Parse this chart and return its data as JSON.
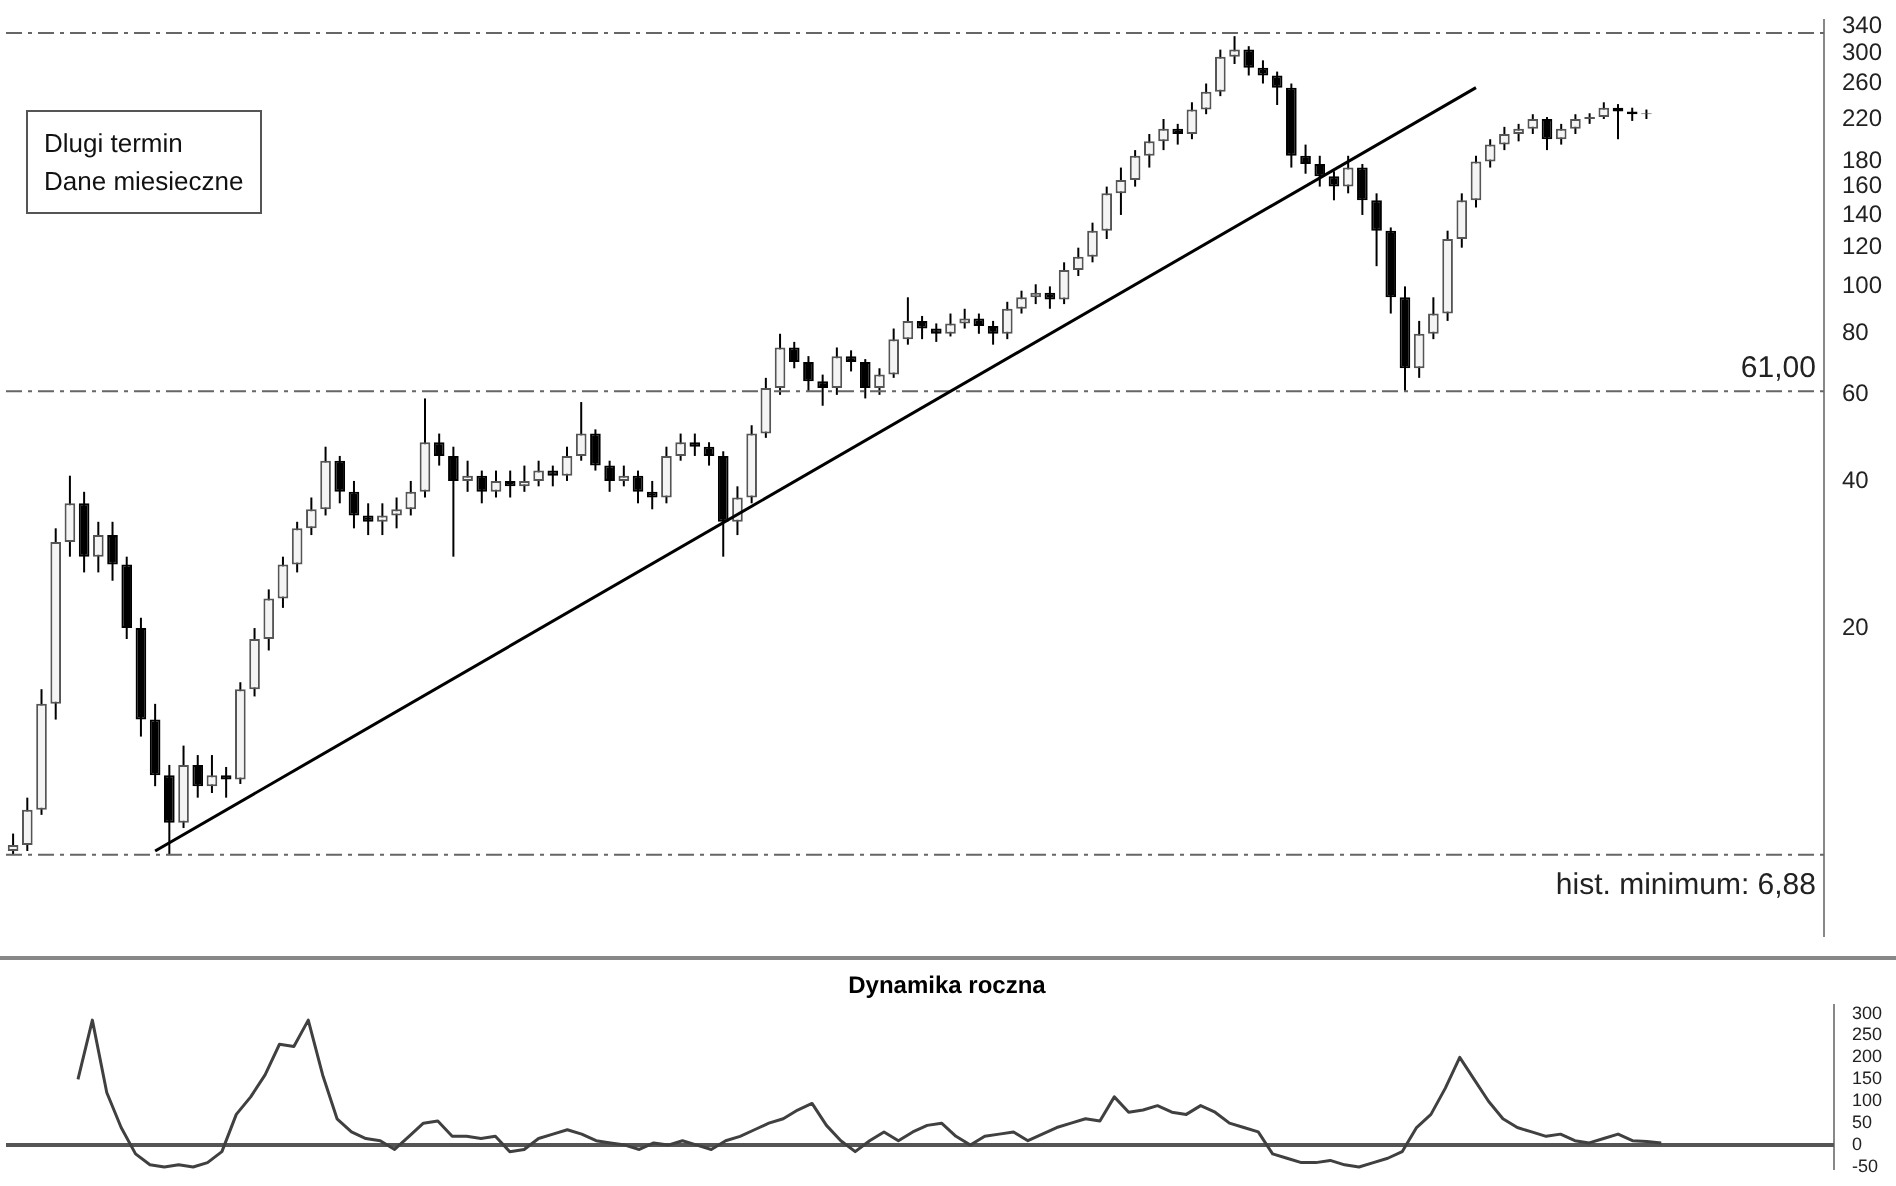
{
  "chart_data": [
    {
      "type": "candlestick",
      "categories": [
        null,
        null,
        null,
        null,
        null,
        null,
        null,
        null,
        null,
        null,
        null,
        null,
        null,
        null,
        null,
        null,
        null,
        null,
        null,
        null,
        null,
        null,
        null,
        null,
        null,
        null,
        null,
        null,
        null,
        null,
        null,
        null,
        null,
        null,
        null,
        null,
        null,
        null,
        null,
        null,
        null,
        null,
        null,
        null,
        null,
        null,
        null,
        null,
        null,
        null,
        null,
        null,
        null,
        null,
        null,
        null,
        null,
        null,
        null,
        null,
        null,
        null,
        null,
        null,
        null,
        null,
        null,
        null,
        null,
        null,
        null,
        null,
        null,
        null,
        null,
        null,
        null,
        null,
        null,
        null,
        null,
        null,
        null,
        null,
        null,
        null,
        null,
        null,
        null,
        null,
        null,
        null,
        null,
        null,
        null,
        null,
        null,
        null,
        null,
        null,
        null,
        null,
        null,
        null,
        null,
        null,
        null,
        null,
        null,
        null,
        null,
        null,
        null,
        null,
        null,
        null,
        null,
        null,
        null,
        null,
        null,
        null,
        null,
        null,
        null,
        null,
        null,
        null
      ],
      "ohlc": [
        [
          7.0,
          7.6,
          6.9,
          7.2
        ],
        [
          7.2,
          9.0,
          7.0,
          8.5
        ],
        [
          8.5,
          15,
          8.3,
          14
        ],
        [
          14,
          32,
          13,
          30
        ],
        [
          30,
          41,
          28,
          36
        ],
        [
          36,
          38,
          26,
          28
        ],
        [
          28,
          33,
          26,
          31
        ],
        [
          31,
          33,
          25,
          27
        ],
        [
          27,
          28,
          19,
          20
        ],
        [
          20,
          21,
          12,
          13
        ],
        [
          13,
          14,
          9.5,
          10
        ],
        [
          10,
          10.5,
          6.9,
          8
        ],
        [
          8,
          11.5,
          7.8,
          10.5
        ],
        [
          10.5,
          11,
          9,
          9.5
        ],
        [
          9.5,
          11,
          9.2,
          10
        ],
        [
          10,
          10.4,
          9,
          9.8
        ],
        [
          9.8,
          15.5,
          9.6,
          15
        ],
        [
          15,
          20,
          14.5,
          19
        ],
        [
          19,
          24,
          18,
          23
        ],
        [
          23,
          28,
          22,
          27
        ],
        [
          27,
          33,
          26,
          32
        ],
        [
          32,
          37,
          31,
          35
        ],
        [
          35,
          47,
          34,
          44
        ],
        [
          44,
          45,
          36,
          38
        ],
        [
          38,
          40,
          32,
          34
        ],
        [
          34,
          36,
          31,
          33
        ],
        [
          33,
          36,
          31,
          34
        ],
        [
          34,
          37,
          32,
          35
        ],
        [
          35,
          40,
          34,
          38
        ],
        [
          38,
          59,
          37,
          48
        ],
        [
          48,
          50,
          43,
          45
        ],
        [
          45,
          47,
          28,
          40
        ],
        [
          40,
          44,
          38,
          41
        ],
        [
          41,
          42,
          36,
          38
        ],
        [
          38,
          42,
          37,
          40
        ],
        [
          40,
          42,
          37,
          39
        ],
        [
          39,
          43,
          38,
          40
        ],
        [
          40,
          44,
          39,
          42
        ],
        [
          42,
          43,
          39,
          41
        ],
        [
          41,
          47,
          40,
          45
        ],
        [
          45,
          58,
          44,
          50
        ],
        [
          50,
          51,
          42,
          43
        ],
        [
          43,
          44,
          38,
          40
        ],
        [
          40,
          43,
          39,
          41
        ],
        [
          41,
          42,
          36,
          38
        ],
        [
          38,
          40,
          35,
          37
        ],
        [
          37,
          47,
          36,
          45
        ],
        [
          45,
          50,
          44,
          48
        ],
        [
          48,
          50,
          45,
          47
        ],
        [
          47,
          48,
          43,
          45
        ],
        [
          45,
          46,
          28,
          33
        ],
        [
          33,
          39,
          31,
          37
        ],
        [
          37,
          52,
          36,
          50
        ],
        [
          50,
          65,
          49,
          62
        ],
        [
          62,
          80,
          60,
          75
        ],
        [
          75,
          77,
          68,
          70
        ],
        [
          70,
          72,
          61,
          64
        ],
        [
          64,
          66,
          57,
          62
        ],
        [
          62,
          75,
          60,
          72
        ],
        [
          72,
          74,
          67,
          70
        ],
        [
          70,
          71,
          59,
          62
        ],
        [
          62,
          68,
          60,
          66
        ],
        [
          66,
          82,
          65,
          78
        ],
        [
          78,
          95,
          76,
          85
        ],
        [
          85,
          87,
          78,
          82
        ],
        [
          82,
          84,
          77,
          80
        ],
        [
          80,
          88,
          79,
          84
        ],
        [
          84,
          90,
          82,
          86
        ],
        [
          86,
          88,
          80,
          83
        ],
        [
          83,
          85,
          76,
          80
        ],
        [
          80,
          93,
          78,
          90
        ],
        [
          90,
          98,
          88,
          95
        ],
        [
          95,
          101,
          92,
          97
        ],
        [
          97,
          100,
          90,
          94
        ],
        [
          94,
          112,
          92,
          108
        ],
        [
          108,
          120,
          105,
          115
        ],
        [
          115,
          135,
          112,
          130
        ],
        [
          130,
          160,
          125,
          155
        ],
        [
          155,
          175,
          140,
          165
        ],
        [
          165,
          190,
          160,
          185
        ],
        [
          185,
          205,
          175,
          198
        ],
        [
          198,
          220,
          190,
          210
        ],
        [
          210,
          215,
          195,
          205
        ],
        [
          205,
          238,
          200,
          230
        ],
        [
          230,
          260,
          225,
          250
        ],
        [
          250,
          305,
          245,
          295
        ],
        [
          295,
          325,
          285,
          305
        ],
        [
          305,
          310,
          270,
          280
        ],
        [
          280,
          290,
          260,
          270
        ],
        [
          270,
          275,
          235,
          255
        ],
        [
          255,
          260,
          175,
          185
        ],
        [
          185,
          195,
          170,
          178
        ],
        [
          178,
          185,
          160,
          168
        ],
        [
          168,
          172,
          150,
          160
        ],
        [
          160,
          185,
          155,
          175
        ],
        [
          175,
          178,
          140,
          150
        ],
        [
          150,
          155,
          110,
          130
        ],
        [
          130,
          132,
          88,
          95
        ],
        [
          95,
          100,
          61,
          68
        ],
        [
          68,
          85,
          65,
          80
        ],
        [
          80,
          95,
          78,
          88
        ],
        [
          88,
          130,
          85,
          125
        ],
        [
          125,
          155,
          120,
          150
        ],
        [
          150,
          185,
          145,
          180
        ],
        [
          180,
          200,
          175,
          195
        ],
        [
          195,
          212,
          190,
          205
        ],
        [
          205,
          215,
          198,
          210
        ],
        [
          210,
          225,
          205,
          220
        ],
        [
          220,
          222,
          190,
          200
        ],
        [
          200,
          215,
          195,
          210
        ],
        [
          210,
          225,
          205,
          220
        ],
        [
          220,
          226,
          215,
          222
        ],
        [
          222,
          238,
          220,
          232
        ],
        [
          232,
          236,
          200,
          228
        ],
        [
          228,
          232,
          218,
          225
        ],
        [
          225,
          230,
          220,
          226
        ],
        null,
        null,
        null,
        null,
        null,
        null,
        null,
        null,
        null,
        null,
        null,
        null
      ],
      "series": [
        {
          "type": "line",
          "color": "#000000",
          "values": [
            null,
            null,
            null,
            null,
            null,
            null,
            null,
            null,
            null,
            null,
            7.0,
            null,
            null,
            null,
            null,
            null,
            null,
            null,
            null,
            null,
            null,
            null,
            null,
            null,
            null,
            null,
            null,
            null,
            null,
            null,
            null,
            null,
            null,
            null,
            null,
            null,
            null,
            null,
            null,
            null,
            null,
            null,
            null,
            null,
            null,
            null,
            null,
            null,
            null,
            null,
            null,
            null,
            null,
            null,
            null,
            null,
            null,
            null,
            null,
            null,
            null,
            null,
            null,
            null,
            null,
            null,
            null,
            null,
            null,
            null,
            null,
            null,
            null,
            null,
            null,
            null,
            null,
            null,
            null,
            null,
            null,
            null,
            null,
            null,
            null,
            null,
            null,
            null,
            null,
            null,
            null,
            null,
            null,
            null,
            null,
            null,
            null,
            null,
            null,
            null,
            null,
            null,
            null,
            255,
            null,
            null,
            null,
            null,
            null,
            null,
            null,
            null,
            null,
            null,
            null,
            null,
            null,
            null,
            null,
            null,
            null,
            null,
            null,
            null,
            null,
            null,
            null,
            null
          ]
        }
      ],
      "log": "y",
      "ylim": [
        4.7,
        350
      ],
      "yticks": [
        20,
        40,
        60,
        80,
        100,
        120,
        140,
        160,
        180,
        220,
        260,
        300,
        340
      ],
      "ref_lines": [
        {
          "axis": "y",
          "value": 330,
          "line_style": "dashed"
        },
        {
          "axis": "y",
          "value": 61,
          "label": "61,00",
          "line_style": "dashed"
        },
        {
          "axis": "y",
          "value": 6.88,
          "label": "hist. minimum: 6,88",
          "line_style": "dashed"
        }
      ],
      "annotations": [
        "Dlugi termin",
        "Dane miesieczne"
      ]
    },
    {
      "type": "line",
      "title": "Dynamika roczna",
      "categories": [
        null,
        null,
        null,
        null,
        null,
        null,
        null,
        null,
        null,
        null,
        null,
        null,
        null,
        null,
        null,
        null,
        null,
        null,
        null,
        null,
        null,
        null,
        null,
        null,
        null,
        null,
        null,
        null,
        null,
        null,
        null,
        null,
        null,
        null,
        null,
        null,
        null,
        null,
        null,
        null,
        null,
        null,
        null,
        null,
        null,
        null,
        null,
        null,
        null,
        null,
        null,
        null,
        null,
        null,
        null,
        null,
        null,
        null,
        null,
        null,
        null,
        null,
        null,
        null,
        null,
        null,
        null,
        null,
        null,
        null,
        null,
        null,
        null,
        null,
        null,
        null,
        null,
        null,
        null,
        null,
        null,
        null,
        null,
        null,
        null,
        null,
        null,
        null,
        null,
        null,
        null,
        null,
        null,
        null,
        null,
        null,
        null,
        null,
        null,
        null,
        null,
        null,
        null,
        null,
        null,
        null,
        null,
        null,
        null,
        null,
        null,
        null,
        null,
        null,
        null,
        null,
        null,
        null,
        null,
        null,
        null,
        null,
        null,
        null,
        null,
        null,
        null,
        null
      ],
      "series": [
        {
          "color": "#404040",
          "values": [
            null,
            null,
            null,
            null,
            null,
            150,
            285,
            120,
            40,
            -20,
            -45,
            -50,
            -45,
            -50,
            -40,
            -15,
            70,
            110,
            160,
            230,
            225,
            285,
            160,
            60,
            30,
            15,
            10,
            -10,
            20,
            50,
            55,
            20,
            20,
            15,
            20,
            -15,
            -10,
            15,
            25,
            35,
            25,
            10,
            5,
            0,
            -10,
            5,
            0,
            10,
            0,
            -10,
            10,
            20,
            35,
            50,
            60,
            80,
            95,
            45,
            10,
            -15,
            10,
            30,
            10,
            30,
            45,
            50,
            20,
            0,
            20,
            25,
            30,
            10,
            25,
            40,
            50,
            60,
            55,
            110,
            75,
            80,
            90,
            75,
            70,
            90,
            75,
            50,
            40,
            30,
            -20,
            -30,
            -40,
            -40,
            -35,
            -45,
            -50,
            -40,
            -30,
            -15,
            40,
            70,
            130,
            200,
            150,
            100,
            60,
            40,
            30,
            20,
            25,
            10,
            5,
            15,
            25,
            10,
            8,
            5,
            null,
            null,
            null,
            null,
            null,
            null,
            null,
            null,
            null,
            null,
            null,
            null
          ]
        }
      ],
      "ylim": [
        -55,
        320
      ],
      "yticks": [
        -50,
        0,
        50,
        100,
        150,
        200,
        250,
        300
      ],
      "ref_lines": [
        {
          "axis": "y",
          "value": 0,
          "line_style": "solid"
        }
      ]
    }
  ]
}
